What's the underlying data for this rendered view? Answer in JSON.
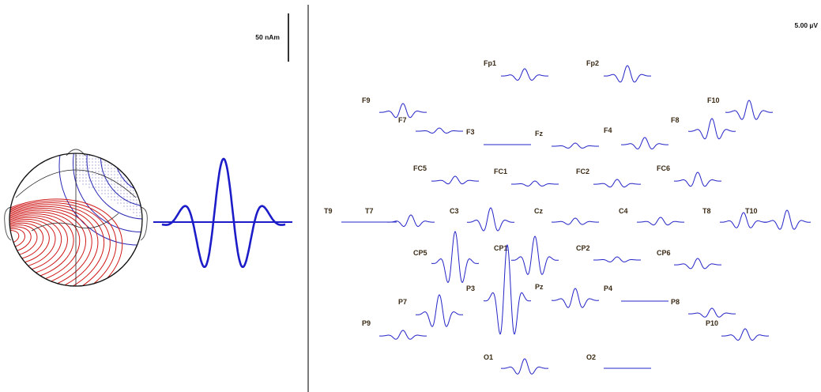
{
  "source_panel": {
    "scale_label": "50 nAm",
    "colors": {
      "waveform": "#1c1cc8",
      "head_outline": "#000000",
      "positive_contours": "#d01818",
      "negative_contours": "#2828b4",
      "dots": "#3c3caa"
    }
  },
  "sensor_panel": {
    "scale_label": "5.00 µV",
    "trace_color": "#2424c8",
    "channels": [
      {
        "label": "Fp1",
        "amp": 0.45
      },
      {
        "label": "Fp2",
        "amp": 0.65
      },
      {
        "label": "F9",
        "amp": 0.55
      },
      {
        "label": "F10",
        "amp": 0.75
      },
      {
        "label": "F7",
        "amp": 0.2
      },
      {
        "label": "F3",
        "amp": 0.0
      },
      {
        "label": "Fz",
        "amp": 0.2
      },
      {
        "label": "F4",
        "amp": 0.45
      },
      {
        "label": "F8",
        "amp": 0.8
      },
      {
        "label": "FC5",
        "amp": 0.3
      },
      {
        "label": "FC1",
        "amp": 0.2
      },
      {
        "label": "FC2",
        "amp": 0.3
      },
      {
        "label": "FC6",
        "amp": 0.55
      },
      {
        "label": "T9",
        "amp": 0.0
      },
      {
        "label": "T7",
        "amp": 0.45
      },
      {
        "label": "C3",
        "amp": 0.9
      },
      {
        "label": "Cz",
        "amp": 0.25
      },
      {
        "label": "C4",
        "amp": 0.3
      },
      {
        "label": "T8",
        "amp": 0.6
      },
      {
        "label": "T10",
        "amp": 0.75
      },
      {
        "label": "CP5",
        "amp": 2.0
      },
      {
        "label": "CP1",
        "amp": 1.5
      },
      {
        "label": "CP2",
        "amp": 0.2
      },
      {
        "label": "CP6",
        "amp": 0.4
      },
      {
        "label": "P3",
        "amp": 3.5
      },
      {
        "label": "Pz",
        "amp": 0.75
      },
      {
        "label": "P4",
        "amp": 0.0
      },
      {
        "label": "P7",
        "amp": 1.25
      },
      {
        "label": "P8",
        "amp": 0.35
      },
      {
        "label": "P9",
        "amp": 0.35
      },
      {
        "label": "P10",
        "amp": 0.45
      },
      {
        "label": "O1",
        "amp": 0.6
      },
      {
        "label": "O2",
        "amp": 0.0
      }
    ]
  }
}
